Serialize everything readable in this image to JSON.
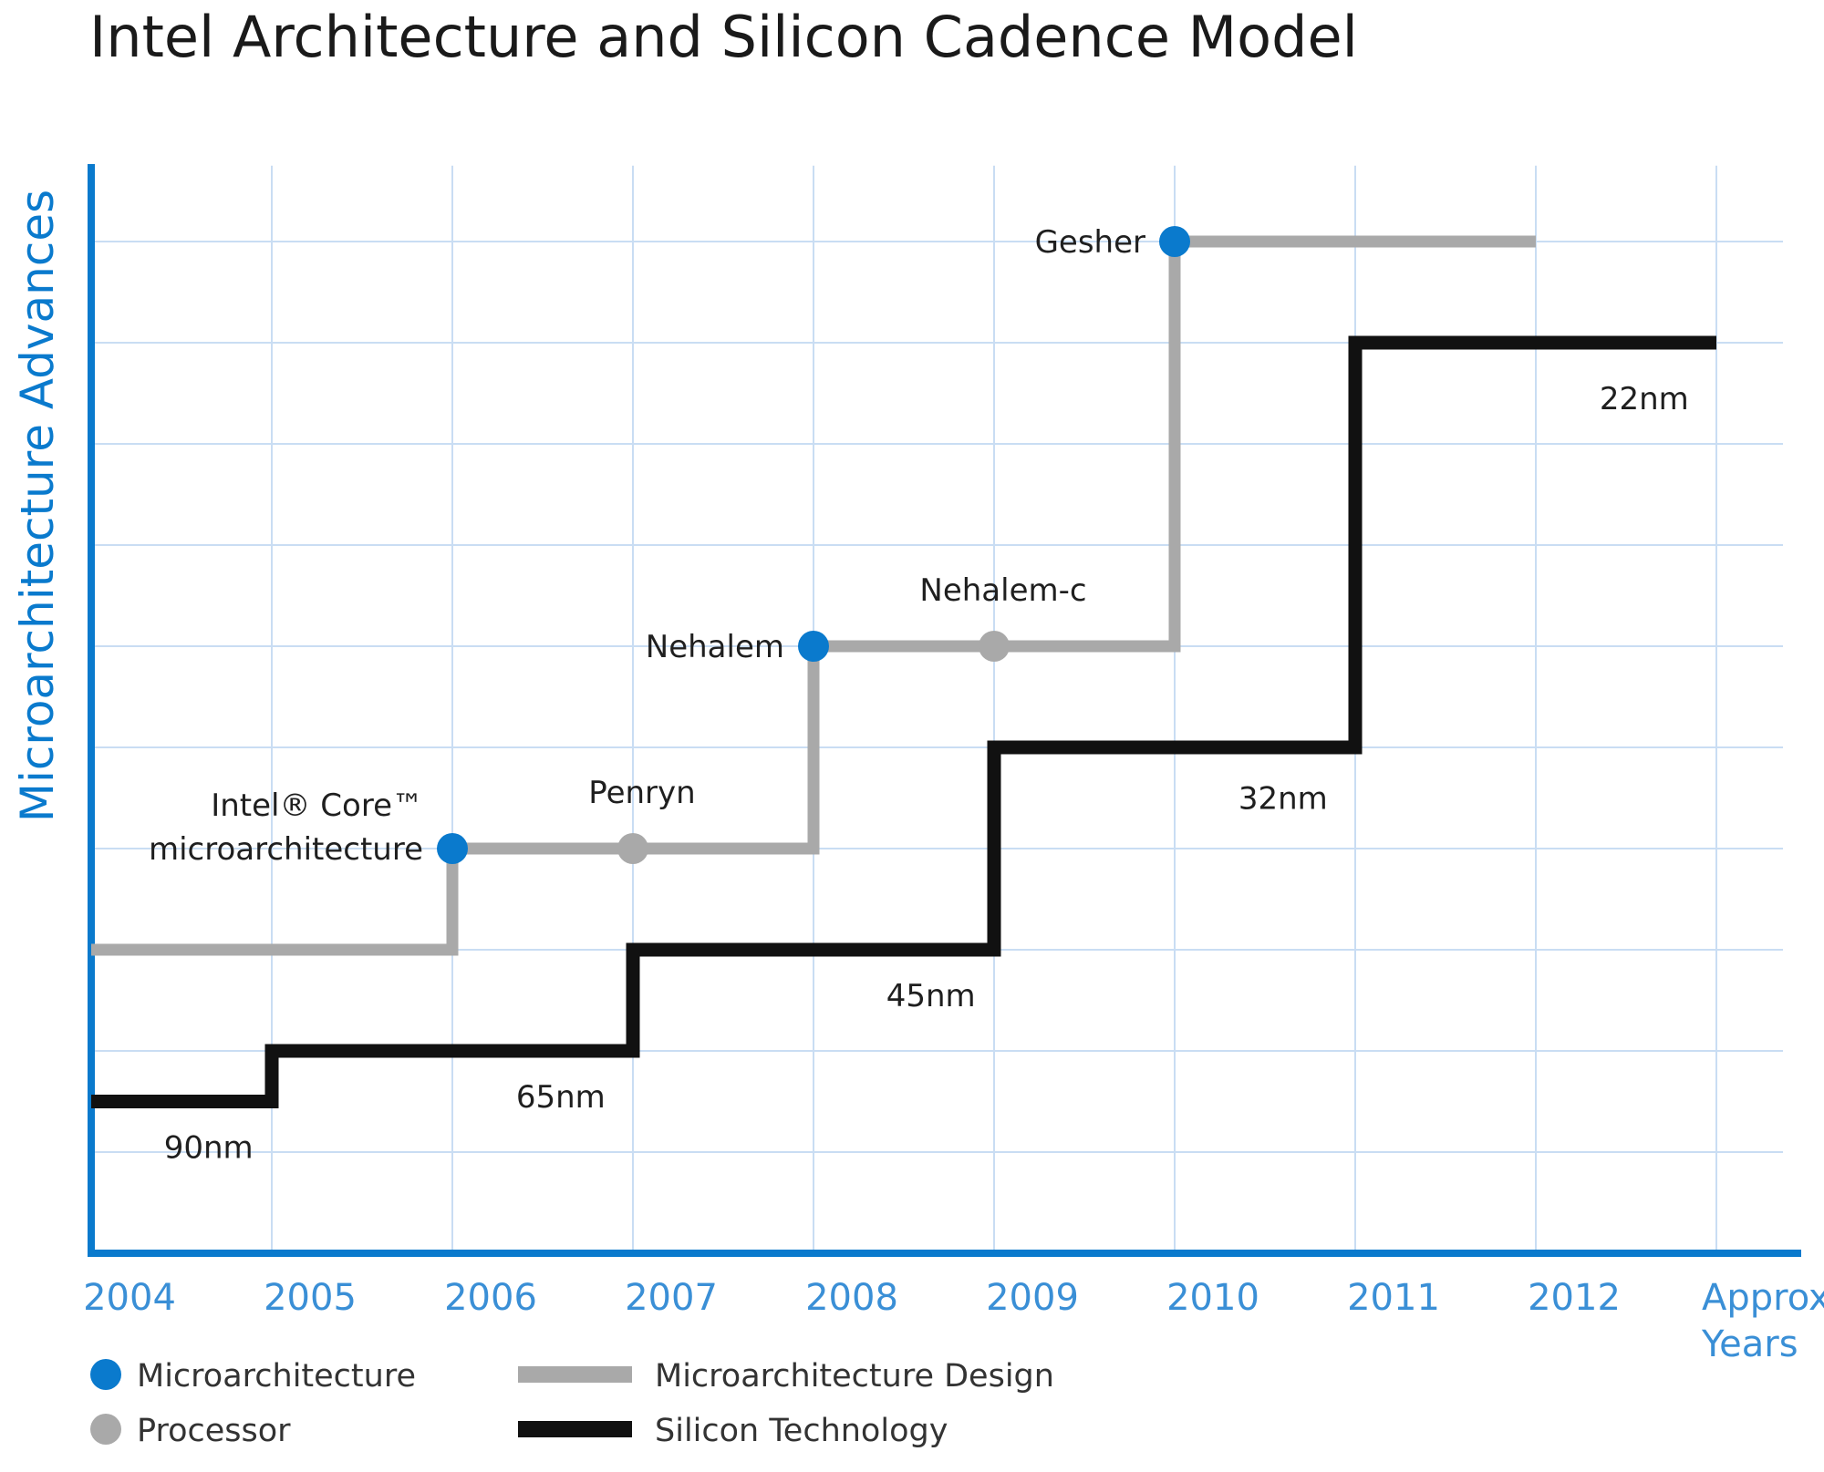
{
  "chart_data": {
    "type": "line",
    "title": "Intel Architecture and Silicon Cadence Model",
    "ylabel": "Microarchitecture Advances",
    "x_ticks": [
      "2004",
      "2005",
      "2006",
      "2007",
      "2008",
      "2009",
      "2010",
      "2011",
      "2012",
      "Approx Years"
    ],
    "xlim": [
      2004,
      2013
    ],
    "ylim": [
      0,
      10.75
    ],
    "grid": true,
    "legend_position": "bottom-left",
    "colors": {
      "axis": "#0a7acd",
      "grid": "#c9ddf3",
      "microarchitecture_design": "#a9a9a9",
      "silicon_technology": "#111111",
      "microarchitecture_point": "#0a7acd",
      "processor_point": "#a9a9a9"
    },
    "series": [
      {
        "name": "Microarchitecture Design",
        "kind": "step",
        "points": [
          [
            2004,
            3
          ],
          [
            2006,
            3
          ],
          [
            2006,
            4
          ],
          [
            2008,
            4
          ],
          [
            2008,
            6
          ],
          [
            2010,
            6
          ],
          [
            2010,
            10
          ],
          [
            2012,
            10
          ]
        ]
      },
      {
        "name": "Silicon Technology",
        "kind": "step",
        "points": [
          [
            2004,
            1.5
          ],
          [
            2005,
            1.5
          ],
          [
            2005,
            2
          ],
          [
            2007,
            2
          ],
          [
            2007,
            3
          ],
          [
            2009,
            3
          ],
          [
            2009,
            5
          ],
          [
            2011,
            5
          ],
          [
            2011,
            9
          ],
          [
            2013,
            9
          ]
        ]
      }
    ],
    "markers": [
      {
        "kind": "microarchitecture",
        "x": 2006,
        "y": 4,
        "label_line1": "Intel® Core™",
        "label_line2": "microarchitecture"
      },
      {
        "kind": "processor",
        "x": 2007,
        "y": 4,
        "label_line1": "Penryn"
      },
      {
        "kind": "microarchitecture",
        "x": 2008,
        "y": 6,
        "label_line1": "Nehalem"
      },
      {
        "kind": "processor",
        "x": 2009,
        "y": 6,
        "label_line1": "Nehalem-c"
      },
      {
        "kind": "microarchitecture",
        "x": 2010,
        "y": 10,
        "label_line1": "Gesher"
      }
    ],
    "process_labels": [
      {
        "text": "90nm",
        "x": 2004.65,
        "y": 1.05
      },
      {
        "text": "65nm",
        "x": 2006.6,
        "y": 1.55
      },
      {
        "text": "45nm",
        "x": 2008.65,
        "y": 2.55
      },
      {
        "text": "32nm",
        "x": 2010.6,
        "y": 4.5
      },
      {
        "text": "22nm",
        "x": 2012.6,
        "y": 8.45
      }
    ],
    "legend": [
      {
        "symbol": "dot",
        "color": "#0a7acd",
        "label": "Microarchitecture"
      },
      {
        "symbol": "dot",
        "color": "#a9a9a9",
        "label": "Processor"
      },
      {
        "symbol": "bar",
        "color": "#a9a9a9",
        "label": "Microarchitecture Design"
      },
      {
        "symbol": "bar",
        "color": "#111111",
        "label": "Silicon Technology"
      }
    ]
  }
}
